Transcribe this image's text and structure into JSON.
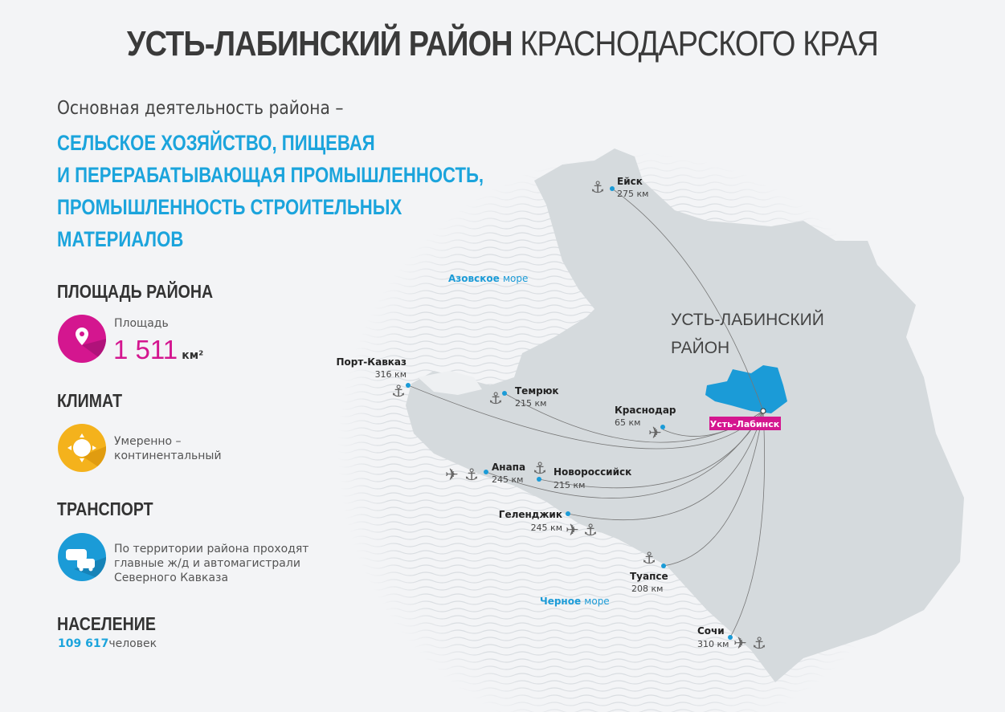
{
  "title": {
    "bold": "УСТЬ-ЛАБИНСКИЙ РАЙОН",
    "regular": "КРАСНОДАРСКОГО КРАЯ"
  },
  "lead": "Основная деятельность района –",
  "activity": [
    "СЕЛЬСКОЕ ХОЗЯЙСТВО, ПИЩЕВАЯ",
    "И ПЕРЕРАБАТЫВАЮЩАЯ ПРОМЫШЛЕННОСТЬ,",
    "ПРОМЫШЛЕННОСТЬ СТРОИТЕЛЬНЫХ",
    "МАТЕРИАЛОВ"
  ],
  "area": {
    "heading": "ПЛОЩАДЬ РАЙОНА",
    "label": "Площадь",
    "value": "1 511",
    "unit": "км²",
    "icon": "map-pin-icon",
    "color": "#d4168f"
  },
  "climate": {
    "heading": "КЛИМАТ",
    "line1": "Умеренно –",
    "line2": "континентальный",
    "icon": "sun-icon",
    "color": "#f4b21c"
  },
  "transport": {
    "heading": "ТРАНСПОРТ",
    "lines": [
      "По территории района проходят",
      "главные ж/д и автомагистрали",
      "Северного Кавказа"
    ],
    "icon": "train-car-icon",
    "color": "#1b9bd7"
  },
  "population": {
    "heading": "НАСЕЛЕНИЕ",
    "value": "109 617",
    "unit": "человек"
  },
  "map": {
    "district_label": [
      "УСТЬ-ЛАБИНСКИЙ",
      "РАЙОН"
    ],
    "center_city": "Усть-Лабинск",
    "seas": [
      {
        "name": "Азовское",
        "suffix": "море"
      },
      {
        "name": "Черное",
        "suffix": "море"
      }
    ],
    "cities": [
      {
        "name": "Ейск",
        "distance": "275 км",
        "icons": [
          "anchor"
        ]
      },
      {
        "name": "Порт-Кавказ",
        "distance": "316 км",
        "icons": [
          "anchor"
        ]
      },
      {
        "name": "Темрюк",
        "distance": "215 км",
        "icons": [
          "anchor"
        ]
      },
      {
        "name": "Краснодар",
        "distance": "65 км",
        "icons": [
          "plane"
        ]
      },
      {
        "name": "Анапа",
        "distance": "245 км",
        "icons": [
          "plane",
          "anchor"
        ]
      },
      {
        "name": "Новороссийск",
        "distance": "215 км",
        "icons": [
          "anchor"
        ]
      },
      {
        "name": "Геленджик",
        "distance": "245 км",
        "icons": [
          "plane",
          "anchor"
        ]
      },
      {
        "name": "Туапсе",
        "distance": "208 км",
        "icons": [
          "anchor"
        ]
      },
      {
        "name": "Сочи",
        "distance": "310 км",
        "icons": [
          "plane",
          "anchor"
        ]
      }
    ],
    "colors": {
      "land": "#d5dadd",
      "district": "#1b9bd7",
      "accent": "#d4168f",
      "dot": "#1b9bd7"
    }
  }
}
